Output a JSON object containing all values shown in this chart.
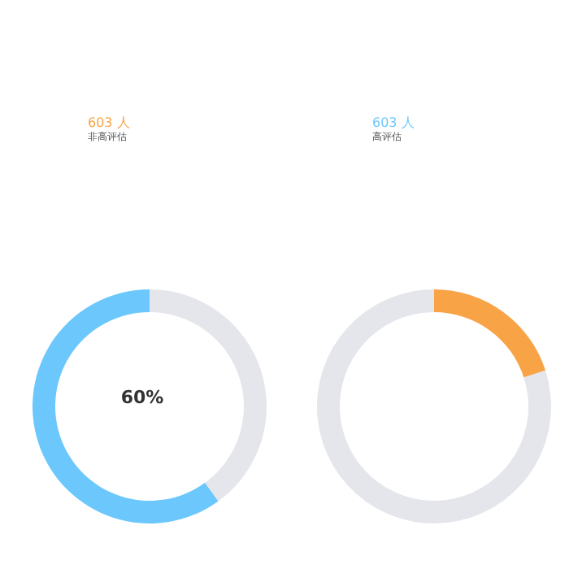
{
  "chart_data": [
    {
      "type": "donut",
      "title": "603 人",
      "subtitle": "非高评估",
      "categories": [
        null,
        null
      ],
      "values": [
        60,
        40
      ],
      "colors": [
        "#6cc8fc",
        "#e4e6ec"
      ],
      "annotations": [
        "60%"
      ],
      "legend": false
    },
    {
      "type": "donut",
      "title": "603 人",
      "subtitle": "高评估",
      "categories": [
        null,
        null
      ],
      "values": [
        80,
        20
      ],
      "colors": [
        "#e4e6ec",
        "#f8a346"
      ],
      "legend": false
    }
  ]
}
